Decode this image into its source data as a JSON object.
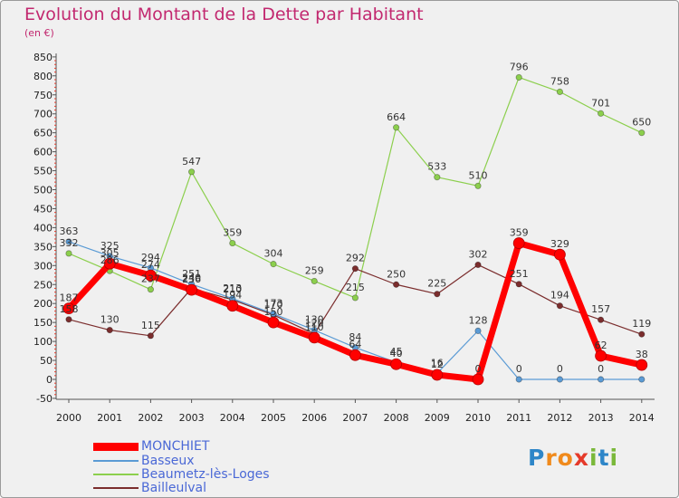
{
  "title": "Evolution du Montant de la Dette par Habitant",
  "subtitle": "(en €)",
  "logo": {
    "letters": [
      "P",
      "r",
      "o",
      "x",
      "i",
      "t",
      "i"
    ],
    "colors": [
      "#2e86c8",
      "#f08a1c",
      "#f08a1c",
      "#e53a2a",
      "#7ab83a",
      "#2e86c8",
      "#7ab83a"
    ]
  },
  "chart_data": {
    "type": "line",
    "x": [
      "2000",
      "2001",
      "2002",
      "2003",
      "2004",
      "2005",
      "2006",
      "2007",
      "2008",
      "2009",
      "2010",
      "2011",
      "2012",
      "2013",
      "2014"
    ],
    "yticks": [
      -50,
      0,
      50,
      100,
      150,
      200,
      250,
      300,
      350,
      400,
      450,
      500,
      550,
      600,
      650,
      700,
      750,
      800,
      850
    ],
    "ylim": [
      -50,
      850
    ],
    "grid": false,
    "legend_position": "bottom-left",
    "series": [
      {
        "name": "MONCHIET",
        "color": "#ff0000",
        "values": [
          187,
          305,
          274,
          236,
          194,
          150,
          110,
          64,
          40,
          12,
          0,
          359,
          329,
          62,
          38
        ],
        "labels": [
          "187",
          "305",
          "274",
          "236",
          "194",
          "150",
          "110",
          "64",
          "40",
          "12",
          "0",
          "359",
          "329",
          "62",
          "38"
        ]
      },
      {
        "name": "Basseux",
        "color": "#5b9bd5",
        "values": [
          363,
          325,
          294,
          251,
          213,
          173,
          130,
          84,
          45,
          16,
          128,
          0,
          0,
          0,
          0
        ],
        "labels": [
          "363",
          "325",
          "294",
          "251",
          "213",
          "173",
          "130",
          "84",
          "45",
          "16",
          "128",
          "0",
          "0",
          "0",
          ""
        ]
      },
      {
        "name": "Beaumetz-lès-Loges",
        "color": "#8ccf4d",
        "values": [
          332,
          286,
          237,
          547,
          359,
          304,
          259,
          215,
          664,
          533,
          510,
          796,
          758,
          701,
          650
        ],
        "labels": [
          "332",
          "286",
          "237",
          "547",
          "359",
          "304",
          "259",
          "215",
          "664",
          "533",
          "510",
          "796",
          "758",
          "701",
          "650"
        ]
      },
      {
        "name": "Bailleulval",
        "color": "#7b2d2d",
        "values": [
          158,
          130,
          115,
          240,
          210,
          170,
          120,
          292,
          250,
          225,
          302,
          251,
          194,
          157,
          119
        ],
        "labels": [
          "158",
          "130",
          "115",
          "240",
          "210",
          "170",
          "120",
          "292",
          "250",
          "225",
          "302",
          "251",
          "194",
          "157",
          "119"
        ]
      }
    ]
  }
}
